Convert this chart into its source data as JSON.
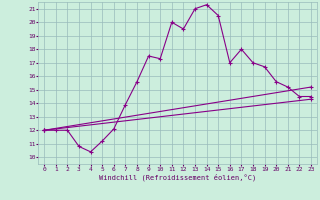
{
  "title": "",
  "xlabel": "Windchill (Refroidissement éolien,°C)",
  "bg_color": "#cceedd",
  "line_color": "#880088",
  "grid_color": "#99bbbb",
  "text_color": "#660066",
  "xlim": [
    -0.5,
    23.5
  ],
  "ylim": [
    9.5,
    21.5
  ],
  "xticks": [
    0,
    1,
    2,
    3,
    4,
    5,
    6,
    7,
    8,
    9,
    10,
    11,
    12,
    13,
    14,
    15,
    16,
    17,
    18,
    19,
    20,
    21,
    22,
    23
  ],
  "yticks": [
    10,
    11,
    12,
    13,
    14,
    15,
    16,
    17,
    18,
    19,
    20,
    21
  ],
  "line1_x": [
    0,
    1,
    2,
    3,
    4,
    5,
    6,
    7,
    8,
    9,
    10,
    11,
    12,
    13,
    14,
    15,
    16,
    17,
    18,
    19,
    20,
    21,
    22,
    23
  ],
  "line1_y": [
    12.0,
    12.0,
    12.0,
    10.8,
    10.4,
    11.2,
    12.1,
    13.9,
    15.6,
    17.5,
    17.3,
    20.0,
    19.5,
    21.0,
    21.3,
    20.5,
    17.0,
    18.0,
    17.0,
    16.7,
    15.6,
    15.2,
    14.5,
    14.5
  ],
  "line2_x": [
    0,
    23
  ],
  "line2_y": [
    12.0,
    15.2
  ],
  "line3_x": [
    0,
    23
  ],
  "line3_y": [
    12.0,
    14.3
  ]
}
